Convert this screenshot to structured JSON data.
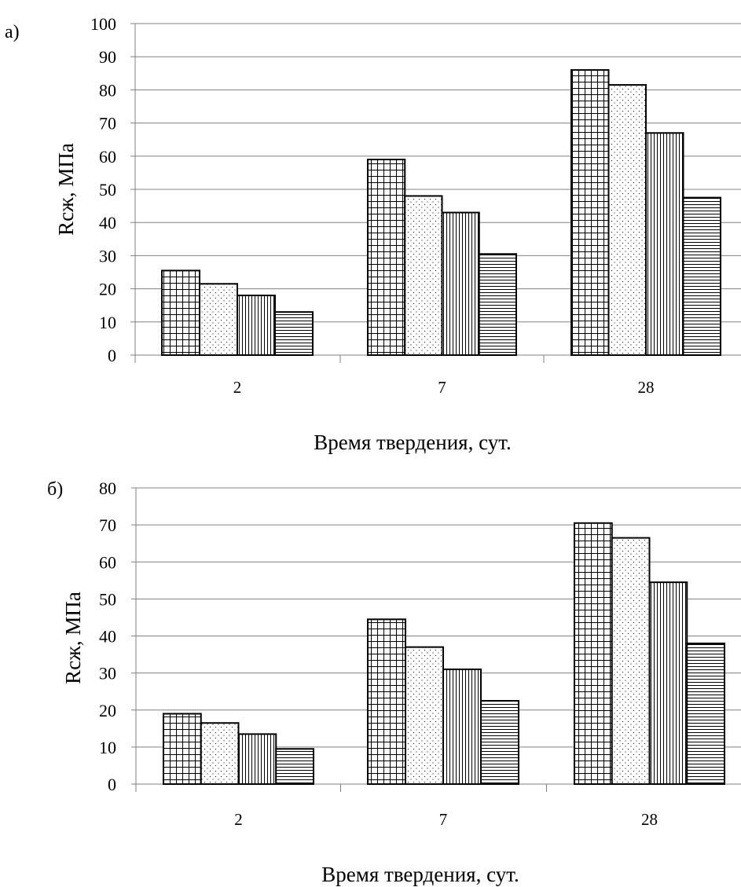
{
  "chart_data": [
    {
      "type": "bar",
      "panel_label": "а)",
      "categories": [
        "2",
        "7",
        "28"
      ],
      "xlabel": "Время твердения, сут.",
      "ylabel": "Rсж, МПа",
      "ylim": [
        0,
        100
      ],
      "yticks": [
        "0",
        "10",
        "20",
        "30",
        "40",
        "50",
        "60",
        "70",
        "80",
        "90",
        "100"
      ],
      "grid": true,
      "series": [
        {
          "pattern": "grid",
          "values": [
            25.5,
            59,
            86
          ]
        },
        {
          "pattern": "dots",
          "values": [
            21.5,
            48,
            81.5
          ]
        },
        {
          "pattern": "vertical-lines",
          "values": [
            18,
            43,
            67
          ]
        },
        {
          "pattern": "horizontal-lines",
          "values": [
            13,
            30.5,
            47.5
          ]
        }
      ]
    },
    {
      "type": "bar",
      "panel_label": "б)",
      "categories": [
        "2",
        "7",
        "28"
      ],
      "xlabel": "Время твердения, сут.",
      "ylabel": "Rсж, МПа",
      "ylim": [
        0,
        80
      ],
      "yticks": [
        "0",
        "10",
        "20",
        "30",
        "40",
        "50",
        "60",
        "70",
        "80"
      ],
      "grid": true,
      "series": [
        {
          "pattern": "grid",
          "values": [
            19,
            44.5,
            70.5
          ]
        },
        {
          "pattern": "dots",
          "values": [
            16.5,
            37,
            66.5
          ]
        },
        {
          "pattern": "vertical-lines",
          "values": [
            13.5,
            31,
            54.5
          ]
        },
        {
          "pattern": "horizontal-lines",
          "values": [
            9.5,
            22.5,
            38
          ]
        }
      ]
    }
  ]
}
